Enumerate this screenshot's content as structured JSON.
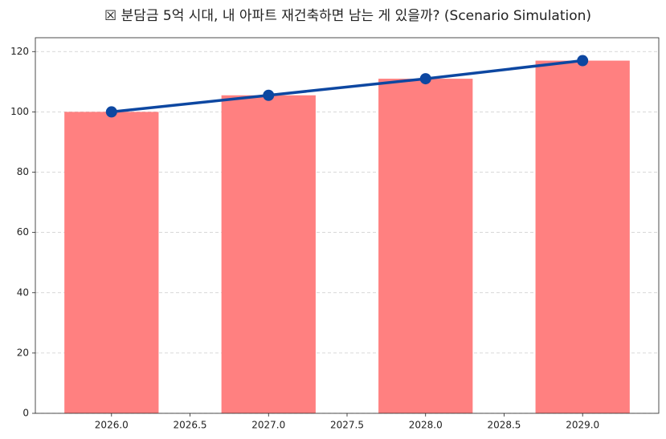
{
  "chart_data": {
    "type": "bar",
    "title": "☒ 분담금 5억 시대, 내 아파트 재건축하면 남는 게 있을까? (Scenario Simulation)",
    "x": [
      2026,
      2027,
      2028,
      2029
    ],
    "series": [
      {
        "type": "bar",
        "color": "#ff8080",
        "values": [
          100,
          105.5,
          111,
          117
        ]
      },
      {
        "type": "line",
        "color": "#0d47a1",
        "values": [
          100,
          105.5,
          111,
          117
        ]
      }
    ],
    "xlim": [
      2025.515,
      2029.485
    ],
    "xticks": [
      {
        "value": 2026,
        "label": "2026.0"
      },
      {
        "value": 2026.5,
        "label": "2026.5"
      },
      {
        "value": 2027,
        "label": "2027.0"
      },
      {
        "value": 2027.5,
        "label": "2027.5"
      },
      {
        "value": 2028,
        "label": "2028.0"
      },
      {
        "value": 2028.5,
        "label": "2028.5"
      },
      {
        "value": 2029,
        "label": "2029.0"
      }
    ],
    "ylim": [
      0,
      124.6
    ],
    "yticks": [
      0,
      20,
      40,
      60,
      80,
      100,
      120
    ],
    "grid": true
  }
}
